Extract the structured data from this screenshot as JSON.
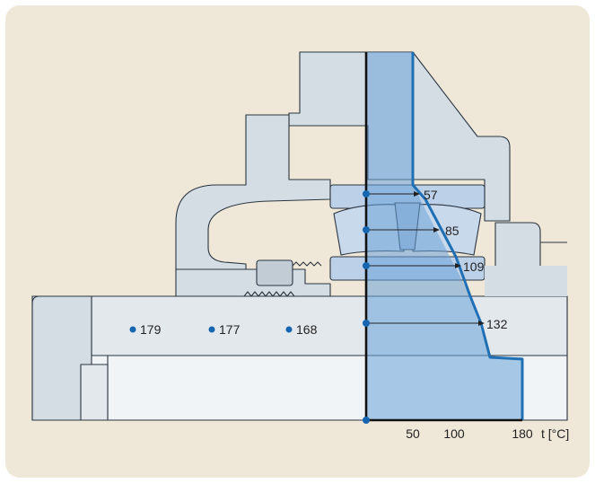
{
  "colors": {
    "panel_bg": "#efe7d8",
    "housing": "#d4dde4",
    "shaft": "#e3e8ed",
    "shaft_light": "#f1f4f7",
    "bearing": "#bcd0e8",
    "outline": "#2a3540",
    "temp_band": "#6aa3d8",
    "temp_curve": "#1f6fb5",
    "dot": "#1565b0"
  },
  "bearing_temperatures": [
    {
      "value": "57"
    },
    {
      "value": "85"
    },
    {
      "value": "109"
    },
    {
      "value": "132"
    }
  ],
  "shaft_temperatures": [
    {
      "value": "179"
    },
    {
      "value": "177"
    },
    {
      "value": "168"
    }
  ],
  "axis": {
    "ticks": [
      "50",
      "100",
      "180"
    ],
    "unit_label": "t [°C]"
  }
}
